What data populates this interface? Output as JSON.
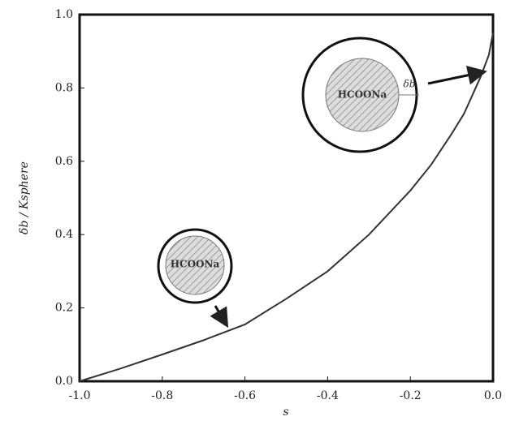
{
  "chart_data": {
    "type": "line",
    "x_label": "s",
    "y_label": "δb / Ksphere",
    "x": [
      -1.0,
      -0.9,
      -0.8,
      -0.7,
      -0.6,
      -0.5,
      -0.4,
      -0.3,
      -0.2,
      -0.15,
      -0.1,
      -0.07,
      -0.05,
      -0.03,
      -0.02,
      -0.01,
      0.0
    ],
    "series": [
      {
        "color": "#333333",
        "values": [
          0.0,
          0.035,
          0.073,
          0.112,
          0.155,
          0.225,
          0.3,
          0.4,
          0.52,
          0.59,
          0.675,
          0.73,
          0.78,
          0.83,
          0.86,
          0.89,
          0.95
        ]
      }
    ],
    "xlim": [
      -1.0,
      0.0
    ],
    "ylim": [
      0.0,
      1.0
    ],
    "xticks": [
      {
        "value": -1.0,
        "label": "-1.0"
      },
      -0.8,
      -0.6,
      -0.4,
      -0.2,
      {
        "value": 0.0,
        "label": "0.0"
      }
    ],
    "yticks": [
      {
        "value": 0.0,
        "label": "0.0"
      },
      0.2,
      0.4,
      0.6,
      0.8,
      {
        "value": 1.0,
        "label": "1.0"
      }
    ],
    "annotations": [
      "HCOONa",
      "δb",
      "HCOONa"
    ]
  }
}
